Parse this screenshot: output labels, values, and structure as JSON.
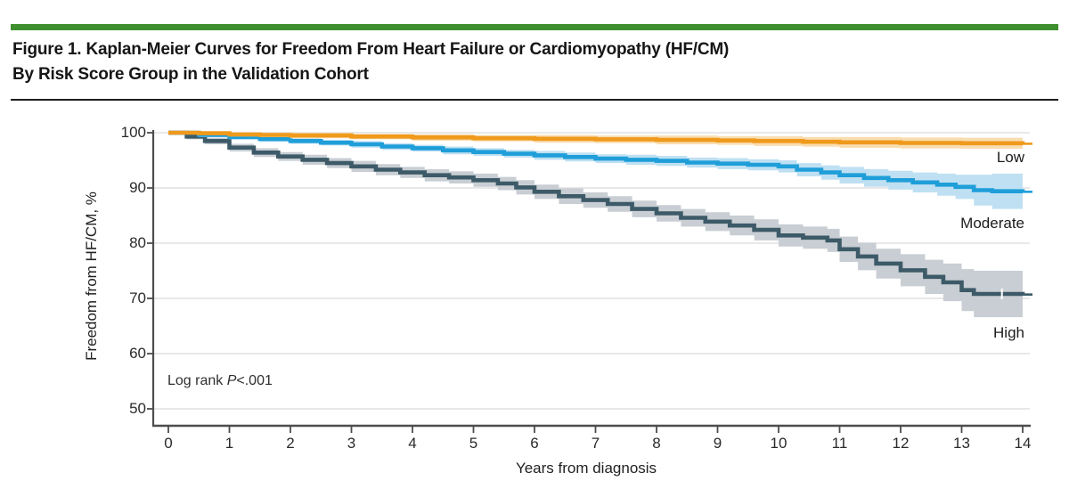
{
  "figure": {
    "title_line1": "Figure 1. Kaplan-Meier Curves for Freedom From Heart Failure or Cardiomyopathy (HF/CM)",
    "title_line2": "By Risk Score Group in the Validation Cohort",
    "accent_bar_color": "#3f8f2f"
  },
  "chart_data": {
    "type": "line",
    "subtype": "kaplan-meier-step-curves-with-confidence-bands",
    "title": "Kaplan-Meier Curves for Freedom From Heart Failure or Cardiomyopathy (HF/CM) By Risk Score Group in the Validation Cohort",
    "xlabel": "Years from diagnosis",
    "ylabel": "Freedom from HF/CM, %",
    "xlim": [
      0,
      14
    ],
    "ylim": [
      50,
      100
    ],
    "x_ticks": [
      0,
      1,
      2,
      3,
      4,
      5,
      6,
      7,
      8,
      9,
      10,
      11,
      12,
      13,
      14
    ],
    "y_ticks": [
      100,
      90,
      80,
      70,
      60,
      50
    ],
    "grid": "horizontal-light-gray",
    "legend_position": "curve-end-labels-right",
    "annotation": {
      "prefix": "Log rank ",
      "italic": "P",
      "suffix": "<.001"
    },
    "axis_color": "#4d4d4d",
    "grid_color": "#d9d9d9",
    "series": [
      {
        "name": "Low",
        "color": "#ef9a1c",
        "ci_color": "#f9ddb1",
        "end_value_pct": 98.0,
        "points": [
          [
            0,
            100,
            0.3
          ],
          [
            0.5,
            99.9,
            0.3
          ],
          [
            1,
            99.7,
            0.4
          ],
          [
            1.5,
            99.6,
            0.4
          ],
          [
            2,
            99.5,
            0.5
          ],
          [
            3,
            99.3,
            0.5
          ],
          [
            4,
            99.15,
            0.6
          ],
          [
            5,
            99.0,
            0.6
          ],
          [
            6,
            98.9,
            0.7
          ],
          [
            7,
            98.8,
            0.7
          ],
          [
            8,
            98.7,
            0.8
          ],
          [
            9,
            98.6,
            0.8
          ],
          [
            9.6,
            98.5,
            0.9
          ],
          [
            10.4,
            98.35,
            0.9
          ],
          [
            11,
            98.25,
            1.0
          ],
          [
            12,
            98.15,
            1.0
          ],
          [
            13,
            98.1,
            1.0
          ],
          [
            14,
            98.0,
            1.0
          ]
        ]
      },
      {
        "name": "Moderate",
        "color": "#1f9ed9",
        "ci_color": "#bfe0f2",
        "end_value_pct": 89.3,
        "points": [
          [
            0,
            100,
            0.3
          ],
          [
            0.5,
            99.6,
            0.4
          ],
          [
            1,
            99.2,
            0.4
          ],
          [
            1.5,
            98.85,
            0.5
          ],
          [
            2,
            98.5,
            0.5
          ],
          [
            2.5,
            98.2,
            0.5
          ],
          [
            3,
            97.9,
            0.6
          ],
          [
            3.5,
            97.5,
            0.6
          ],
          [
            4,
            97.2,
            0.6
          ],
          [
            4.5,
            96.8,
            0.7
          ],
          [
            5,
            96.5,
            0.7
          ],
          [
            5.5,
            96.2,
            0.7
          ],
          [
            6,
            95.9,
            0.8
          ],
          [
            6.5,
            95.6,
            0.8
          ],
          [
            7,
            95.3,
            0.8
          ],
          [
            7.5,
            95.1,
            0.9
          ],
          [
            8,
            94.9,
            0.9
          ],
          [
            8.5,
            94.6,
            0.9
          ],
          [
            9,
            94.4,
            1.0
          ],
          [
            9.5,
            94.2,
            1.0
          ],
          [
            10,
            93.9,
            1.1
          ],
          [
            10.3,
            93.3,
            1.2
          ],
          [
            10.7,
            92.8,
            1.3
          ],
          [
            11,
            92.3,
            1.5
          ],
          [
            11.4,
            91.8,
            1.6
          ],
          [
            11.8,
            91.4,
            1.7
          ],
          [
            12.2,
            91.0,
            1.8
          ],
          [
            12.6,
            90.6,
            2.0
          ],
          [
            12.9,
            90.2,
            2.2
          ],
          [
            13.2,
            89.6,
            2.8
          ],
          [
            13.5,
            89.4,
            3.2
          ],
          [
            14,
            89.3,
            3.3
          ]
        ]
      },
      {
        "name": "High",
        "color": "#3d5a68",
        "ci_color": "#c8ced3",
        "end_value_pct": 70.7,
        "censor_tick_t": 13.66,
        "points": [
          [
            0,
            100,
            0.4
          ],
          [
            0.3,
            99.3,
            0.5
          ],
          [
            0.6,
            98.5,
            0.6
          ],
          [
            1,
            97.3,
            0.7
          ],
          [
            1.4,
            96.4,
            0.8
          ],
          [
            1.8,
            95.7,
            0.8
          ],
          [
            2.2,
            95.1,
            0.9
          ],
          [
            2.6,
            94.5,
            0.9
          ],
          [
            3,
            93.9,
            1.0
          ],
          [
            3.4,
            93.3,
            1.0
          ],
          [
            3.8,
            92.8,
            1.0
          ],
          [
            4.2,
            92.3,
            1.1
          ],
          [
            4.6,
            91.9,
            1.1
          ],
          [
            5,
            91.4,
            1.2
          ],
          [
            5.4,
            90.8,
            1.2
          ],
          [
            5.7,
            90.1,
            1.3
          ],
          [
            6,
            89.3,
            1.3
          ],
          [
            6.4,
            88.5,
            1.4
          ],
          [
            6.8,
            87.8,
            1.4
          ],
          [
            7.2,
            87.1,
            1.4
          ],
          [
            7.6,
            86.2,
            1.5
          ],
          [
            8,
            85.4,
            1.5
          ],
          [
            8.4,
            84.6,
            1.6
          ],
          [
            8.8,
            83.9,
            1.7
          ],
          [
            9.2,
            83.2,
            1.8
          ],
          [
            9.6,
            82.4,
            1.9
          ],
          [
            10,
            81.4,
            2.0
          ],
          [
            10.4,
            81.0,
            2.0
          ],
          [
            10.8,
            80.5,
            2.1
          ],
          [
            11,
            78.9,
            2.3
          ],
          [
            11.3,
            77.6,
            2.5
          ],
          [
            11.6,
            76.3,
            2.7
          ],
          [
            12,
            75.1,
            2.9
          ],
          [
            12.4,
            73.9,
            3.1
          ],
          [
            12.7,
            72.9,
            3.4
          ],
          [
            13,
            71.5,
            3.8
          ],
          [
            13.2,
            70.8,
            4.2
          ],
          [
            14,
            70.7,
            4.3
          ]
        ]
      }
    ]
  }
}
